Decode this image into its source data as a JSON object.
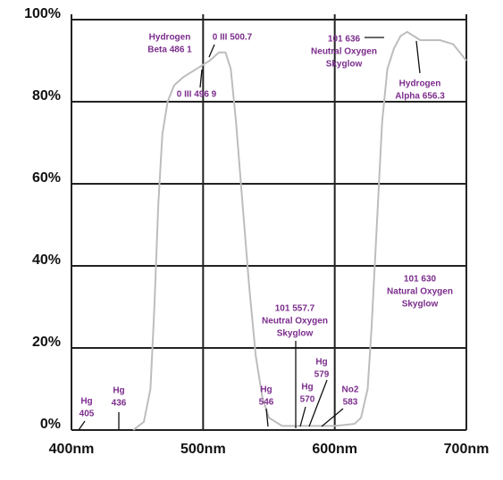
{
  "chart_data": {
    "type": "line",
    "x": [
      447,
      455,
      460,
      463,
      466,
      469,
      473,
      478,
      485,
      495,
      505,
      512,
      517,
      521,
      525,
      530,
      535,
      540,
      545,
      550,
      560,
      580,
      600,
      615,
      620,
      625,
      628,
      632,
      636,
      640,
      645,
      650,
      655,
      660,
      665,
      680,
      690,
      695,
      700
    ],
    "values": [
      0,
      2,
      10,
      30,
      55,
      72,
      80,
      84,
      86,
      88,
      90,
      92,
      92,
      88,
      75,
      55,
      35,
      18,
      8,
      3,
      1,
      1,
      1,
      1.5,
      3,
      10,
      25,
      50,
      75,
      88,
      93,
      96,
      97,
      96,
      95,
      95,
      94,
      92,
      90
    ],
    "color": "#bdbdbd",
    "xlim": [
      400,
      700
    ],
    "xticks": [
      {
        "value": 400,
        "label": "400nm"
      },
      {
        "value": 500,
        "label": "500nm"
      },
      {
        "value": 600,
        "label": "600nm"
      },
      {
        "value": 700,
        "label": "700nm"
      }
    ],
    "ylim": [
      0,
      100
    ],
    "yticks": [
      {
        "value": 0,
        "label": "0%"
      },
      {
        "value": 20,
        "label": "20%"
      },
      {
        "value": 40,
        "label": "40%"
      },
      {
        "value": 60,
        "label": "60%"
      },
      {
        "value": 80,
        "label": "80%"
      },
      {
        "value": 100,
        "label": "100%"
      }
    ],
    "grid": true,
    "annotations": [
      {
        "lines": [
          "Hg",
          "405"
        ]
      },
      {
        "lines": [
          "Hg",
          "436"
        ]
      },
      {
        "lines": [
          "Hydrogen",
          "Beta 486 1"
        ]
      },
      {
        "lines": [
          "0 III 500.7"
        ]
      },
      {
        "lines": [
          "0 III 496 9"
        ]
      },
      {
        "lines": [
          "101 636",
          "Neutral Oxygen",
          "Skyglow"
        ]
      },
      {
        "lines": [
          "Hydrogen",
          "Alpha 656.3"
        ]
      },
      {
        "lines": [
          "101 630",
          "Natural Oxygen",
          "Skyglow"
        ]
      },
      {
        "lines": [
          "101 557.7",
          "Neutral Oxygen",
          "Skyglow"
        ]
      },
      {
        "lines": [
          "Hg",
          "546"
        ]
      },
      {
        "lines": [
          "Hg",
          "570"
        ]
      },
      {
        "lines": [
          "Hg",
          "579"
        ]
      },
      {
        "lines": [
          "No2",
          "583"
        ]
      }
    ]
  }
}
